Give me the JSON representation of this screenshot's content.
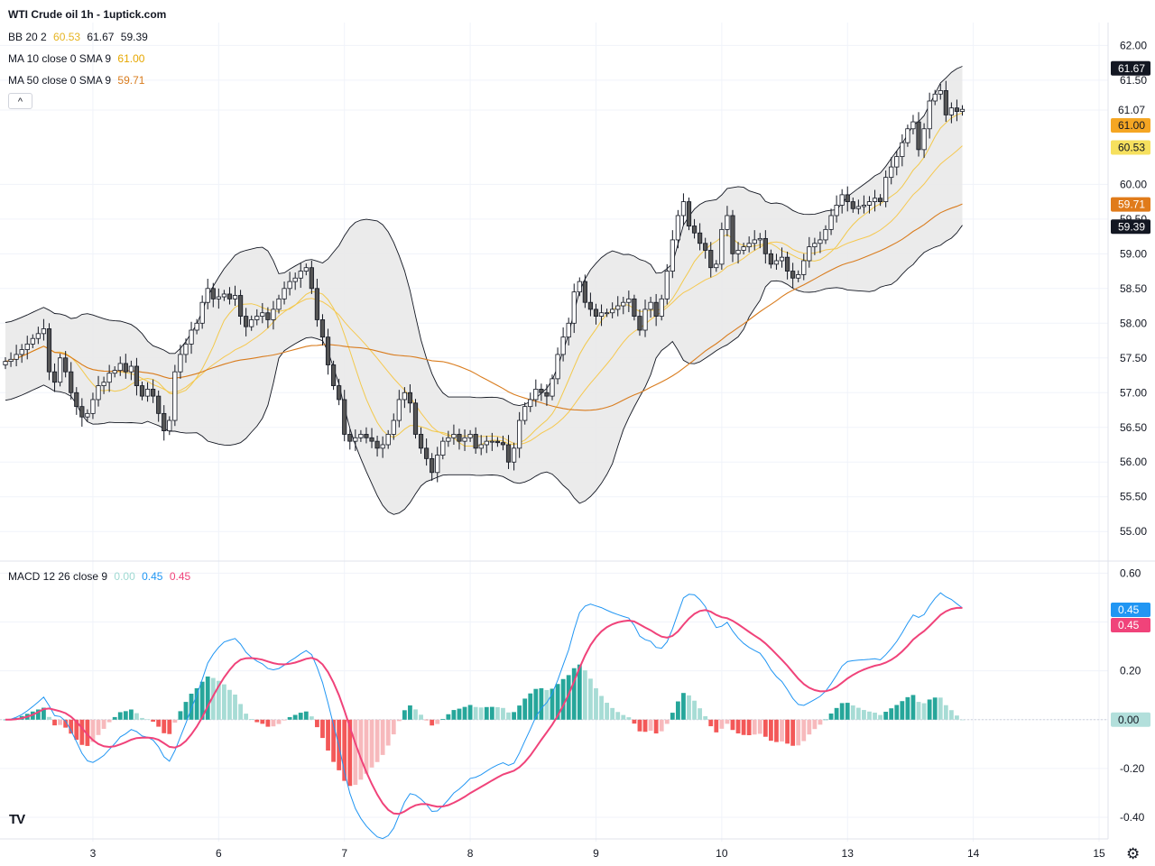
{
  "header": {
    "title": "WTI Crude oil  1h - 1uptick.com"
  },
  "legend": {
    "bb": {
      "label": "BB 20 2",
      "values": [
        "60.53",
        "61.67",
        "59.39"
      ]
    },
    "ma10": {
      "label": "MA 10 close 0 SMA 9",
      "value": "61.00"
    },
    "ma50": {
      "label": "MA 50 close 0 SMA 9",
      "value": "59.71"
    },
    "macd": {
      "label": "MACD 12 26 close 9",
      "values": [
        "0.00",
        "0.45",
        "0.45"
      ]
    }
  },
  "buttons": {
    "collapse": "^"
  },
  "logo": {
    "text": "TV"
  },
  "colors": {
    "up": "#ffffff",
    "down": "#555555",
    "wick": "#131722",
    "bb_fill": "#e9e9e9",
    "bb_line": "#131722",
    "bb_basis": "#f6c850",
    "ma10": "#f2c94c",
    "ma50": "#d97c1e",
    "macd_line": "#2196f3",
    "signal_line": "#f0437a",
    "hist_up_strong": "#26a69a",
    "hist_up_weak": "#a7dcd5",
    "hist_dn_strong": "#f35858",
    "hist_dn_weak": "#f7b9bc",
    "grid": "#f0f3fa"
  },
  "chart_data": [
    {
      "type": "candlestick",
      "title": "WTI Crude oil  1h",
      "ylim": [
        54.6,
        62.2
      ],
      "y_ticks": [
        "62.00",
        "61.50",
        "61.07",
        "60.00",
        "59.50",
        "59.00",
        "58.50",
        "58.00",
        "57.50",
        "57.00",
        "56.50",
        "56.00",
        "55.50",
        "55.00"
      ],
      "x_ticks": [
        "3",
        "6",
        "7",
        "8",
        "9",
        "10",
        "13",
        "14",
        "15"
      ],
      "price_tags": [
        {
          "value": 61.67,
          "text": "61.67",
          "style": "dark"
        },
        {
          "value": 61.07,
          "text": "61.07",
          "style": "plain"
        },
        {
          "value": 61.0,
          "text": "61.00",
          "style": "ma10"
        },
        {
          "value": 60.53,
          "text": "60.53",
          "style": "basis"
        },
        {
          "value": 59.71,
          "text": "59.71",
          "style": "ma50"
        },
        {
          "value": 59.39,
          "text": "59.39",
          "style": "dark"
        }
      ],
      "close": [
        57.45,
        57.48,
        57.55,
        57.62,
        57.7,
        57.78,
        57.85,
        57.92,
        57.3,
        57.15,
        57.5,
        57.3,
        57.0,
        56.8,
        56.65,
        56.7,
        56.9,
        57.1,
        57.15,
        57.28,
        57.32,
        57.42,
        57.3,
        57.38,
        57.1,
        56.95,
        57.05,
        56.95,
        56.7,
        56.45,
        56.6,
        57.3,
        57.55,
        57.7,
        57.9,
        58.0,
        58.3,
        58.5,
        58.35,
        58.38,
        58.42,
        58.35,
        58.4,
        58.1,
        57.95,
        58.05,
        58.1,
        58.15,
        58.05,
        58.2,
        58.35,
        58.5,
        58.6,
        58.65,
        58.75,
        58.8,
        58.5,
        58.05,
        57.8,
        57.4,
        57.1,
        56.9,
        56.4,
        56.3,
        56.35,
        56.4,
        56.35,
        56.3,
        56.2,
        56.25,
        56.4,
        56.6,
        56.9,
        57.0,
        56.85,
        56.4,
        56.2,
        56.05,
        55.85,
        56.1,
        56.3,
        56.35,
        56.4,
        56.3,
        56.35,
        56.4,
        56.2,
        56.25,
        56.3,
        56.3,
        56.28,
        56.25,
        56.0,
        56.2,
        56.6,
        56.8,
        56.9,
        57.05,
        57.0,
        56.95,
        57.2,
        57.55,
        57.8,
        58.0,
        58.45,
        58.6,
        58.3,
        58.2,
        58.1,
        58.15,
        58.15,
        58.2,
        58.25,
        58.3,
        58.35,
        58.1,
        57.9,
        58.2,
        58.3,
        58.1,
        58.35,
        58.75,
        59.2,
        59.55,
        59.75,
        59.4,
        59.3,
        59.15,
        59.05,
        58.8,
        58.85,
        59.35,
        59.55,
        59.0,
        59.05,
        59.1,
        59.15,
        59.2,
        59.22,
        59.0,
        58.85,
        58.9,
        58.95,
        58.75,
        58.65,
        58.7,
        58.9,
        59.1,
        59.15,
        59.2,
        59.35,
        59.55,
        59.7,
        59.85,
        59.75,
        59.65,
        59.68,
        59.7,
        59.75,
        59.8,
        59.75,
        60.1,
        60.25,
        60.4,
        60.6,
        60.8,
        60.9,
        60.5,
        60.8,
        61.2,
        61.3,
        61.35,
        61.0,
        61.1,
        61.05,
        61.08
      ]
    },
    {
      "type": "bar",
      "title": "MACD 12 26 close 9",
      "ylim": [
        -0.47,
        0.62
      ],
      "y_ticks": [
        "0.60",
        "0.40",
        "0.20",
        "0.00",
        "-0.20",
        "-0.40"
      ],
      "price_tags": [
        {
          "value": 0.45,
          "text": "0.45",
          "style": "macd"
        },
        {
          "value": 0.45,
          "text": "0.45",
          "style": "signal"
        },
        {
          "value": 0.0,
          "text": "0.00",
          "style": "hist"
        }
      ]
    }
  ]
}
